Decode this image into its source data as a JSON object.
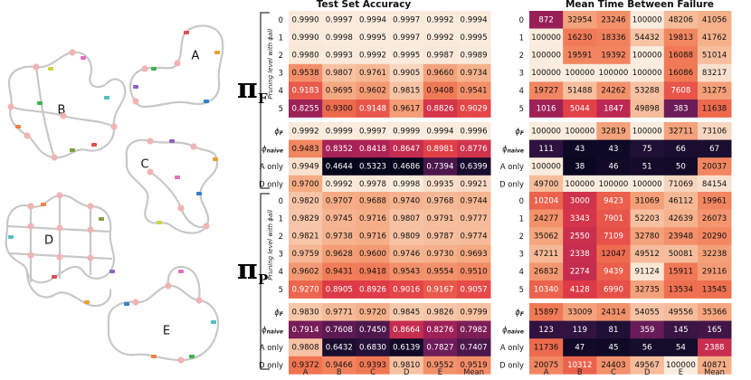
{
  "colors": {
    "track": "#c8c8c8",
    "node": "#f0b4b4",
    "car_colors": [
      "#e05050",
      "#e7a030",
      "#40b050",
      "#9060c0",
      "#3080d0",
      "#d0d040",
      "#e070c0",
      "#50c0c0",
      "#f08040",
      "#80a040"
    ]
  },
  "tracks": {
    "labels": [
      "A",
      "B",
      "C",
      "D",
      "E"
    ]
  },
  "chart_data": {
    "type": "heatmap",
    "panels": [
      {
        "title": "Test Set Accuracy",
        "kind": "accuracy"
      },
      {
        "title": "Mean Time Between Failure",
        "kind": "mtbf"
      }
    ],
    "columns": [
      "A",
      "B",
      "C",
      "D",
      "E",
      "Mean"
    ],
    "groups": [
      {
        "pi_symbol": "π",
        "pi_subscript": "F",
        "rotated_label": "Pruning level with ϕall",
        "blocks": [
          {
            "row_labels": [
              "0",
              "1",
              "2",
              "3",
              "4",
              "5"
            ],
            "accuracy": [
              [
                "0.9990",
                "0.9997",
                "0.9994",
                "0.9997",
                "0.9992",
                "0.9994"
              ],
              [
                "0.9990",
                "0.9998",
                "0.9995",
                "0.9997",
                "0.9992",
                "0.9995"
              ],
              [
                "0.9980",
                "0.9993",
                "0.9992",
                "0.9995",
                "0.9987",
                "0.9989"
              ],
              [
                "0.9538",
                "0.9807",
                "0.9761",
                "0.9905",
                "0.9660",
                "0.9734"
              ],
              [
                "0.9183",
                "0.9695",
                "0.9602",
                "0.9815",
                "0.9408",
                "0.9541"
              ],
              [
                "0.8255",
                "0.9300",
                "0.9148",
                "0.9617",
                "0.8826",
                "0.9029"
              ]
            ],
            "mtbf": [
              [
                "872",
                "32954",
                "23246",
                "100000",
                "48206",
                "41056"
              ],
              [
                "100000",
                "16230",
                "18336",
                "54432",
                "19813",
                "41762"
              ],
              [
                "100000",
                "19591",
                "19392",
                "100000",
                "16088",
                "51014"
              ],
              [
                "100000",
                "100000",
                "100000",
                "100000",
                "16086",
                "83217"
              ],
              [
                "19727",
                "51488",
                "24262",
                "53288",
                "7608",
                "31275"
              ],
              [
                "1016",
                "5044",
                "1847",
                "49898",
                "383",
                "11638"
              ]
            ]
          },
          {
            "row_labels": [
              "ϕF",
              "ϕnaive",
              "A only",
              "D only"
            ],
            "accuracy": [
              [
                "0.9992",
                "0.9999",
                "0.9997",
                "0.9999",
                "0.9994",
                "0.9996"
              ],
              [
                "0.9483",
                "0.8352",
                "0.8418",
                "0.8647",
                "0.8981",
                "0.8776"
              ],
              [
                "0.9949",
                "0.4644",
                "0.5323",
                "0.4686",
                "0.7394",
                "0.6399"
              ],
              [
                "0.9700",
                "0.9992",
                "0.9978",
                "0.9998",
                "0.9935",
                "0.9921"
              ]
            ],
            "mtbf": [
              [
                "100000",
                "100000",
                "32819",
                "100000",
                "32711",
                "73106"
              ],
              [
                "111",
                "43",
                "43",
                "75",
                "66",
                "67"
              ],
              [
                "100000",
                "38",
                "46",
                "51",
                "50",
                "20037"
              ],
              [
                "49700",
                "100000",
                "100000",
                "100000",
                "71069",
                "84154"
              ]
            ]
          }
        ]
      },
      {
        "pi_symbol": "π",
        "pi_subscript": "P",
        "rotated_label": "Pruning level with ϕall",
        "blocks": [
          {
            "row_labels": [
              "0",
              "1",
              "2",
              "3",
              "4",
              "5"
            ],
            "accuracy": [
              [
                "0.9820",
                "0.9707",
                "0.9688",
                "0.9740",
                "0.9768",
                "0.9744"
              ],
              [
                "0.9829",
                "0.9745",
                "0.9716",
                "0.9807",
                "0.9791",
                "0.9777"
              ],
              [
                "0.9821",
                "0.9738",
                "0.9716",
                "0.9809",
                "0.9787",
                "0.9774"
              ],
              [
                "0.9759",
                "0.9628",
                "0.9600",
                "0.9746",
                "0.9730",
                "0.9693"
              ],
              [
                "0.9602",
                "0.9431",
                "0.9418",
                "0.9543",
                "0.9554",
                "0.9510"
              ],
              [
                "0.9270",
                "0.8905",
                "0.8926",
                "0.9016",
                "0.9167",
                "0.9057"
              ]
            ],
            "mtbf": [
              [
                "10204",
                "3000",
                "9423",
                "31069",
                "46112",
                "19961"
              ],
              [
                "24277",
                "3343",
                "7901",
                "52203",
                "42639",
                "26073"
              ],
              [
                "35062",
                "2550",
                "7109",
                "32780",
                "23948",
                "20290"
              ],
              [
                "47211",
                "2338",
                "12047",
                "49512",
                "50081",
                "32238"
              ],
              [
                "26832",
                "2274",
                "9439",
                "91124",
                "15911",
                "29116"
              ],
              [
                "10340",
                "4128",
                "6990",
                "32735",
                "13534",
                "13545"
              ]
            ]
          },
          {
            "row_labels": [
              "ϕF",
              "ϕnaive",
              "A only",
              "D only"
            ],
            "accuracy": [
              [
                "0.9830",
                "0.9771",
                "0.9720",
                "0.9845",
                "0.9826",
                "0.9799"
              ],
              [
                "0.7914",
                "0.7608",
                "0.7450",
                "0.8664",
                "0.8276",
                "0.7982"
              ],
              [
                "0.9808",
                "0.6432",
                "0.6830",
                "0.6139",
                "0.7827",
                "0.7407"
              ],
              [
                "0.9372",
                "0.9466",
                "0.9393",
                "0.9810",
                "0.9552",
                "0.9519"
              ]
            ],
            "mtbf": [
              [
                "15897",
                "33009",
                "24314",
                "54055",
                "49556",
                "35366"
              ],
              [
                "123",
                "119",
                "81",
                "359",
                "145",
                "165"
              ],
              [
                "11736",
                "47",
                "45",
                "56",
                "54",
                "2388"
              ],
              [
                "20075",
                "10312",
                "24403",
                "49567",
                "100000",
                "40871"
              ]
            ]
          }
        ]
      }
    ]
  }
}
